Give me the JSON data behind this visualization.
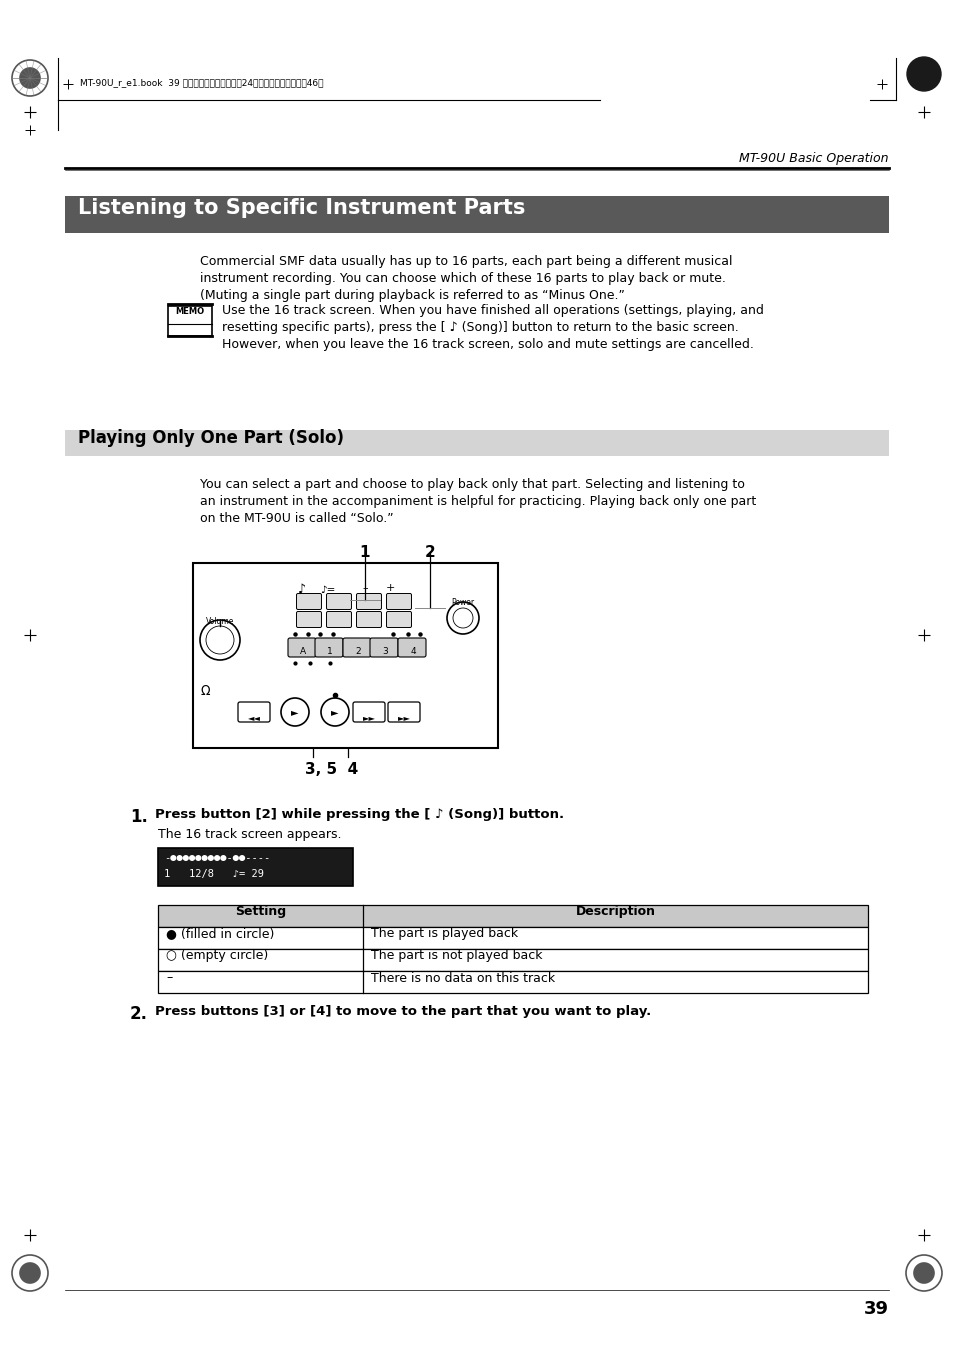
{
  "page_header_right": "MT-90U Basic Operation",
  "header_file_text": "MT-90U_r_e1.book  39",
  "section1_title": "Listening to Specific Instrument Parts",
  "section1_title_bg": "#595959",
  "section1_title_color": "#ffffff",
  "section2_title": "Playing Only One Part (Solo)",
  "section2_title_bg": "#d4d4d4",
  "section2_title_color": "#000000",
  "step1_text": "The 16 track screen appears.",
  "step2_bold": "Press buttons [3] or [4] to move to the part that you want to play.",
  "table_headers": [
    "Setting",
    "Description"
  ],
  "table_rows": [
    [
      "● (filled in circle)",
      "The part is played back"
    ],
    [
      "○ (empty circle)",
      "The part is not played back"
    ],
    [
      "–",
      "There is no data on this track"
    ]
  ],
  "page_number": "39",
  "bg_color": "#ffffff",
  "text_color": "#000000"
}
